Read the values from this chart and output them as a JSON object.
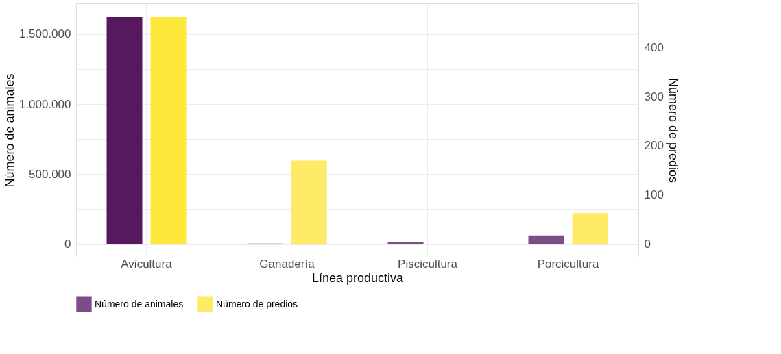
{
  "chart_data": {
    "type": "bar",
    "categories": [
      "Avicultura",
      "Ganadería",
      "Piscicultura",
      "Porcicultura"
    ],
    "xlabel": "Línea productiva",
    "ylabel": "Número de animales",
    "y2label": "Número de predios",
    "series": [
      {
        "name": "Número de animales",
        "colors": [
          "#56195f",
          "#7c4d87",
          "#7c4d87",
          "#7c4d87"
        ],
        "values": [
          1622000,
          4000,
          13000,
          63000
        ]
      },
      {
        "name": "Número de predios",
        "axis": "y2",
        "colors": [
          "#fde83b",
          "#feea66",
          "#feea66",
          "#feea66"
        ],
        "values": [
          462,
          170,
          0,
          63
        ]
      }
    ],
    "ylim": [
      -90000,
      1720000
    ],
    "yticks": [
      0,
      {
        "value": 250000,
        "label": null
      },
      {
        "value": 500000,
        "label": "500.000"
      },
      {
        "value": 750000,
        "label": null
      },
      {
        "value": 1000000,
        "label": "1.000.000"
      },
      {
        "value": 1250000,
        "label": null
      },
      {
        "value": 1500000,
        "label": "1.500.000"
      }
    ],
    "y2lim": [
      -26,
      490
    ],
    "y2ticks": [
      0,
      100,
      200,
      300,
      400
    ],
    "grid": true,
    "legend": "bottom"
  }
}
